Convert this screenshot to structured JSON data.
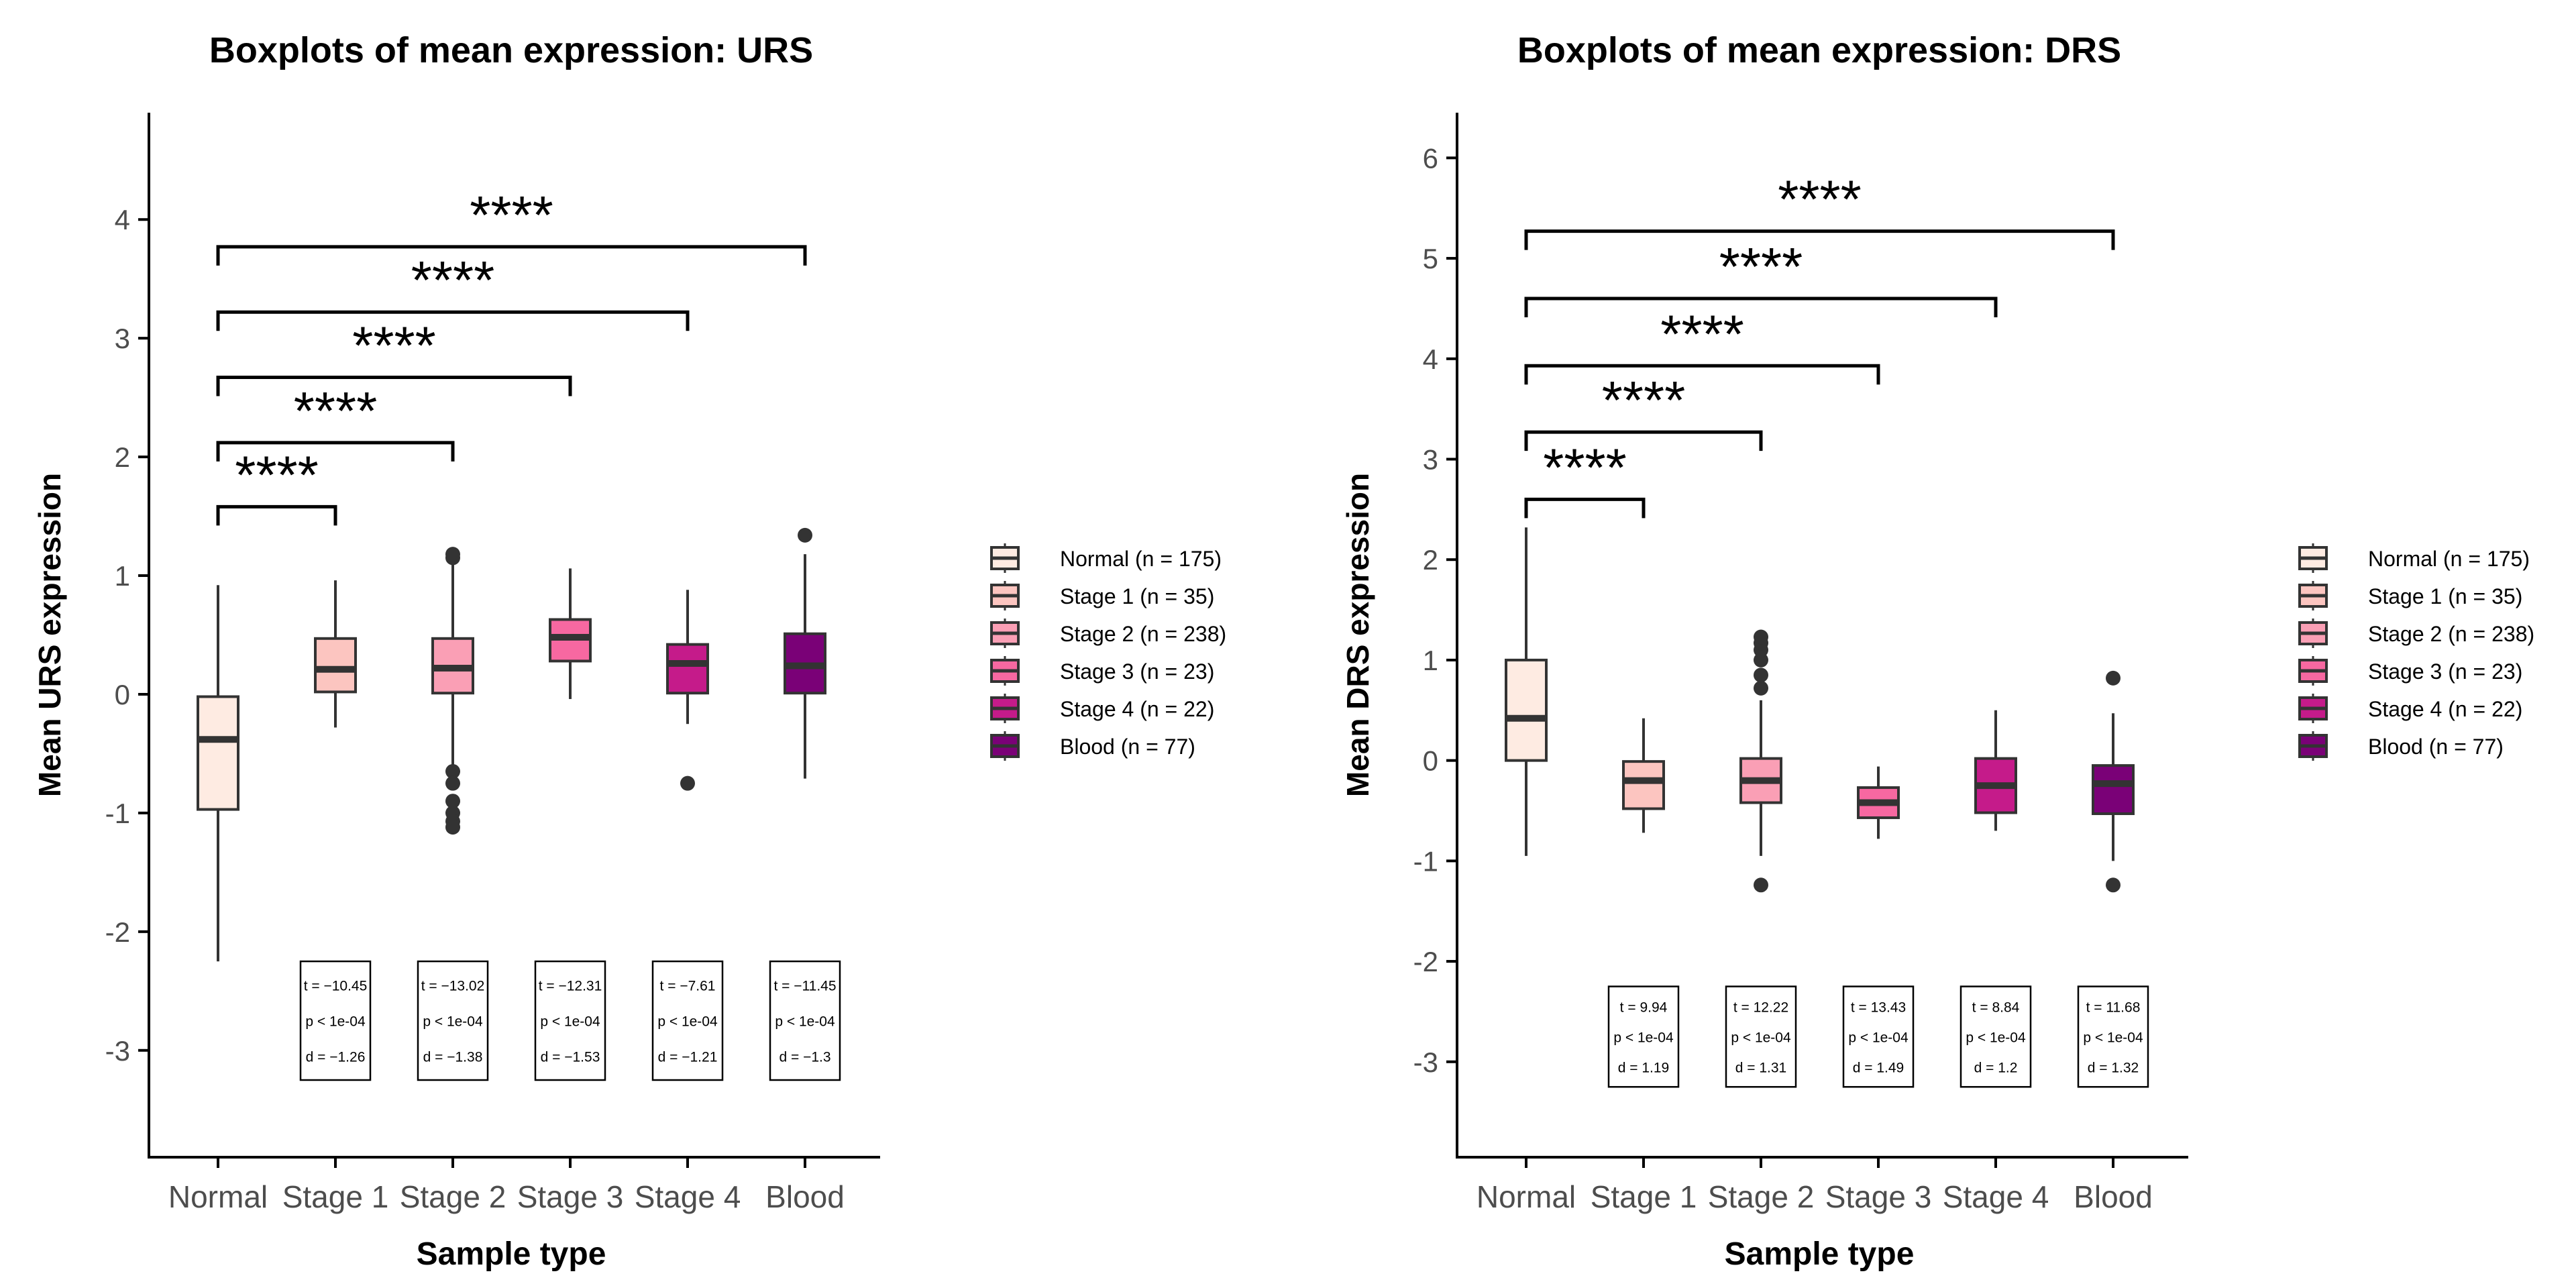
{
  "chart_data": [
    {
      "type": "box",
      "title": "Boxplots of mean expression: URS",
      "xlabel": "Sample type",
      "ylabel": "Mean URS expression",
      "ylim": [
        -3.9,
        4.9
      ],
      "yticks": [
        -3,
        -2,
        -1,
        0,
        1,
        2,
        3,
        4
      ],
      "legend_position": "right",
      "categories": [
        "Normal",
        "Stage 1",
        "Stage 2",
        "Stage 3",
        "Stage 4",
        "Blood"
      ],
      "legend": [
        "Normal (n = 175)",
        "Stage 1 (n = 35)",
        "Stage 2 (n = 238)",
        "Stage 3 (n = 23)",
        "Stage 4 (n = 22)",
        "Blood (n = 77)"
      ],
      "boxes": [
        {
          "min": -2.25,
          "q1": -0.97,
          "median": -0.38,
          "q3": -0.02,
          "max": 0.92,
          "outliers": []
        },
        {
          "min": -0.28,
          "q1": 0.02,
          "median": 0.21,
          "q3": 0.47,
          "max": 0.96,
          "outliers": []
        },
        {
          "min": -0.6,
          "q1": 0.01,
          "median": 0.22,
          "q3": 0.47,
          "max": 1.1,
          "outliers": [
            1.15,
            1.18,
            -0.65,
            -0.75,
            -0.9,
            -1.0,
            -1.07,
            -1.12
          ]
        },
        {
          "min": -0.04,
          "q1": 0.28,
          "median": 0.48,
          "q3": 0.63,
          "max": 1.06,
          "outliers": []
        },
        {
          "min": -0.25,
          "q1": 0.01,
          "median": 0.26,
          "q3": 0.42,
          "max": 0.88,
          "outliers": [
            -0.75
          ]
        },
        {
          "min": -0.71,
          "q1": 0.01,
          "median": 0.24,
          "q3": 0.51,
          "max": 1.18,
          "outliers": [
            1.34
          ]
        }
      ],
      "brackets": [
        {
          "from": "Normal",
          "to": "Stage 1",
          "y": 1.58,
          "label": "****"
        },
        {
          "from": "Normal",
          "to": "Stage 2",
          "y": 2.12,
          "label": "****"
        },
        {
          "from": "Normal",
          "to": "Stage 3",
          "y": 2.67,
          "label": "****"
        },
        {
          "from": "Normal",
          "to": "Stage 4",
          "y": 3.22,
          "label": "****"
        },
        {
          "from": "Normal",
          "to": "Blood",
          "y": 3.77,
          "label": "****"
        }
      ],
      "stats": [
        {
          "category": "Stage 1",
          "t": "t = −10.45",
          "p": "p < 1e-04",
          "d": "d = −1.26"
        },
        {
          "category": "Stage 2",
          "t": "t = −13.02",
          "p": "p < 1e-04",
          "d": "d = −1.38"
        },
        {
          "category": "Stage 3",
          "t": "t = −12.31",
          "p": "p < 1e-04",
          "d": "d = −1.53"
        },
        {
          "category": "Stage 4",
          "t": "t = −7.61",
          "p": "p < 1e-04",
          "d": "d = −1.21"
        },
        {
          "category": "Blood",
          "t": "t = −11.45",
          "p": "p < 1e-04",
          "d": "d = −1.3"
        }
      ]
    },
    {
      "type": "box",
      "title": "Boxplots of mean expression: DRS",
      "xlabel": "Sample type",
      "ylabel": "Mean DRS expression",
      "ylim": [
        -3.95,
        6.45
      ],
      "yticks": [
        -3,
        -2,
        -1,
        0,
        1,
        2,
        3,
        4,
        5,
        6
      ],
      "legend_position": "right",
      "categories": [
        "Normal",
        "Stage 1",
        "Stage 2",
        "Stage 3",
        "Stage 4",
        "Blood"
      ],
      "legend": [
        "Normal (n = 175)",
        "Stage 1 (n = 35)",
        "Stage 2 (n = 238)",
        "Stage 3 (n = 23)",
        "Stage 4 (n = 22)",
        "Blood (n = 77)"
      ],
      "boxes": [
        {
          "min": -0.95,
          "q1": 0.0,
          "median": 0.42,
          "q3": 1.0,
          "max": 2.32,
          "outliers": []
        },
        {
          "min": -0.72,
          "q1": -0.48,
          "median": -0.2,
          "q3": -0.01,
          "max": 0.42,
          "outliers": []
        },
        {
          "min": -0.95,
          "q1": -0.42,
          "median": -0.2,
          "q3": 0.02,
          "max": 0.6,
          "outliers": [
            0.72,
            0.85,
            1.0,
            1.1,
            1.17,
            1.23,
            -1.24
          ]
        },
        {
          "min": -0.78,
          "q1": -0.57,
          "median": -0.42,
          "q3": -0.27,
          "max": -0.06,
          "outliers": []
        },
        {
          "min": -0.7,
          "q1": -0.52,
          "median": -0.25,
          "q3": 0.02,
          "max": 0.5,
          "outliers": []
        },
        {
          "min": -1.0,
          "q1": -0.53,
          "median": -0.23,
          "q3": -0.05,
          "max": 0.47,
          "outliers": [
            0.82,
            -1.24
          ]
        }
      ],
      "brackets": [
        {
          "from": "Normal",
          "to": "Stage 1",
          "y": 2.6,
          "label": "****"
        },
        {
          "from": "Normal",
          "to": "Stage 2",
          "y": 3.27,
          "label": "****"
        },
        {
          "from": "Normal",
          "to": "Stage 3",
          "y": 3.93,
          "label": "****"
        },
        {
          "from": "Normal",
          "to": "Stage 4",
          "y": 4.6,
          "label": "****"
        },
        {
          "from": "Normal",
          "to": "Blood",
          "y": 5.27,
          "label": "****"
        }
      ],
      "stats": [
        {
          "category": "Stage 1",
          "t": "t = 9.94",
          "p": "p < 1e-04",
          "d": "d = 1.19"
        },
        {
          "category": "Stage 2",
          "t": "t = 12.22",
          "p": "p < 1e-04",
          "d": "d = 1.31"
        },
        {
          "category": "Stage 3",
          "t": "t = 13.43",
          "p": "p < 1e-04",
          "d": "d = 1.49"
        },
        {
          "category": "Stage 4",
          "t": "t = 8.84",
          "p": "p < 1e-04",
          "d": "d = 1.2"
        },
        {
          "category": "Blood",
          "t": "t = 11.68",
          "p": "p < 1e-04",
          "d": "d = 1.32"
        }
      ]
    }
  ],
  "colors": [
    "#FEEBE2",
    "#FCC5C0",
    "#FA9FB5",
    "#F768A1",
    "#C51B8A",
    "#7A0177"
  ],
  "ink": "#333333"
}
